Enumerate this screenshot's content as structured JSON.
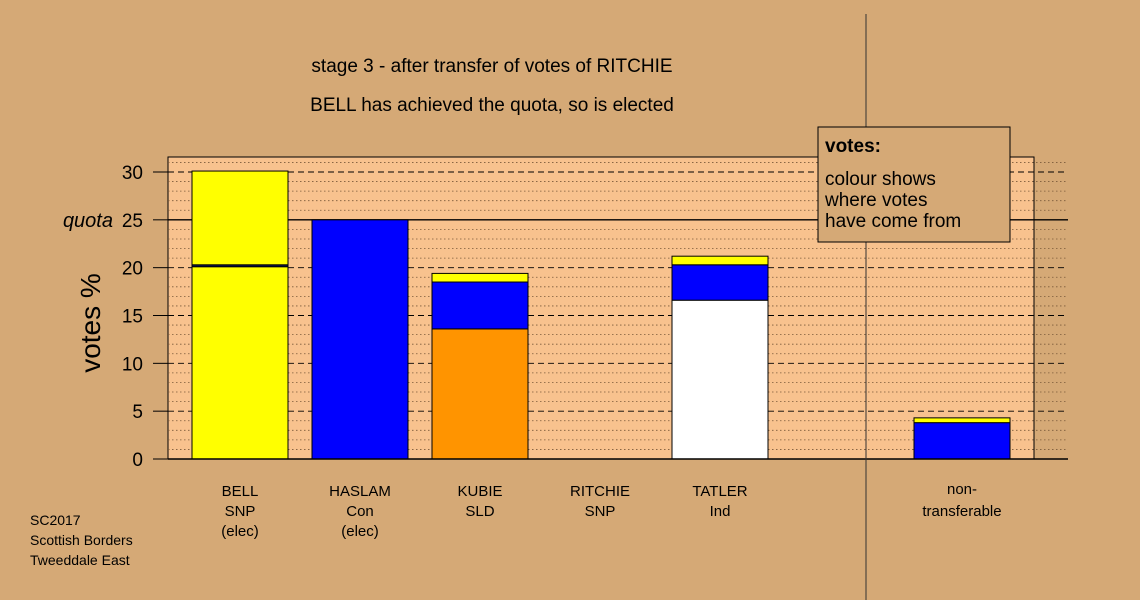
{
  "chart_data": {
    "type": "bar",
    "stacked": true,
    "title": "stage 3 - after transfer of votes of RITCHIE",
    "subtitle": "BELL has achieved the quota, so is elected",
    "ylabel": "votes %",
    "ylim": [
      0,
      30
    ],
    "yticks": [
      0,
      5,
      10,
      15,
      20,
      25,
      30
    ],
    "quota": {
      "label": "quota",
      "value": 25
    },
    "grid": true,
    "candidates": [
      {
        "lines": [
          "BELL",
          "SNP",
          "(elec)"
        ],
        "segments": [
          {
            "value": 20.1,
            "color": "#ffff00"
          },
          {
            "value": 0.2,
            "color": "#0d1a66"
          },
          {
            "value": 9.8,
            "color": "#ffff00"
          }
        ]
      },
      {
        "lines": [
          "HASLAM",
          "Con",
          "(elec)"
        ],
        "segments": [
          {
            "value": 25.0,
            "color": "#0000ff"
          }
        ]
      },
      {
        "lines": [
          "KUBIE",
          "SLD"
        ],
        "segments": [
          {
            "value": 13.6,
            "color": "#ff9400"
          },
          {
            "value": 4.9,
            "color": "#0000ff"
          },
          {
            "value": 0.9,
            "color": "#ffff00"
          }
        ]
      },
      {
        "lines": [
          "RITCHIE",
          "SNP"
        ],
        "segments": []
      },
      {
        "lines": [
          "TATLER",
          "Ind"
        ],
        "segments": [
          {
            "value": 16.6,
            "color": "#ffffff"
          },
          {
            "value": 3.7,
            "color": "#0000ff"
          },
          {
            "value": 0.9,
            "color": "#ffff00"
          }
        ]
      }
    ],
    "nontransferable": {
      "lines": [
        "non-",
        "transferable"
      ],
      "segments": [
        {
          "value": 3.8,
          "color": "#0000ff"
        },
        {
          "value": 0.5,
          "color": "#ffff00"
        }
      ]
    },
    "legend": {
      "title": "votes:",
      "lines": [
        "colour shows",
        "where votes",
        "have come from"
      ],
      "placement": "top-right"
    }
  },
  "footer": {
    "election": "SC2017",
    "council": "Scottish Borders",
    "ward": "Tweeddale East"
  },
  "colors": {
    "background": "#d5a976",
    "plot_area": "#f8c28e",
    "legend_fill": "#d5a976"
  }
}
